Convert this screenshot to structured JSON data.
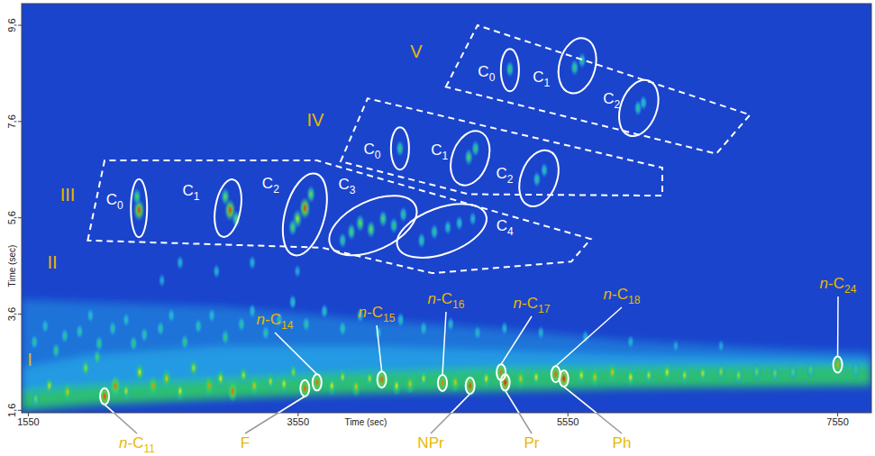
{
  "chart_data": {
    "type": "contour",
    "xlabel": "Time (sec)",
    "ylabel": "Time (sec)",
    "xlim": [
      1500,
      7800
    ],
    "ylim": [
      1.55,
      10.05
    ],
    "xticks": [
      1550,
      3550,
      5550,
      7550
    ],
    "yticks": [
      {
        "value": 1.6,
        "label": "1,6"
      },
      {
        "value": 3.6,
        "label": "3,6"
      },
      {
        "value": 5.6,
        "label": "5,6"
      },
      {
        "value": 7.6,
        "label": "7,6"
      },
      {
        "value": 9.6,
        "label": "9,6"
      }
    ],
    "zlim": [
      0,
      100
    ],
    "grid": false,
    "bands": [
      {
        "x": [
          1500,
          2000,
          3000,
          4000,
          5000,
          6000,
          7000,
          7800
        ],
        "y_low": [
          2.45,
          2.7,
          2.9,
          2.9,
          2.8,
          2.7,
          2.65,
          2.6
        ],
        "y_high": [
          3.9,
          3.85,
          3.75,
          3.5,
          3.3,
          3.05,
          2.9,
          2.8
        ],
        "intensity": 12
      },
      {
        "x": [
          1500,
          2000,
          3000,
          4000,
          5000,
          6000,
          7000,
          7800
        ],
        "y_low": [
          1.95,
          2.05,
          2.2,
          2.3,
          2.4,
          2.45,
          2.47,
          2.5
        ],
        "y_high": [
          2.48,
          2.75,
          2.93,
          2.93,
          2.84,
          2.75,
          2.7,
          2.66
        ],
        "intensity": 22
      },
      {
        "x": [
          1500,
          2000,
          3000,
          4000,
          5000,
          6000,
          7000,
          7800
        ],
        "y_low": [
          1.6,
          1.71,
          1.84,
          1.95,
          2.0,
          2.06,
          2.09,
          2.11
        ],
        "y_high": [
          2.02,
          2.11,
          2.26,
          2.39,
          2.48,
          2.51,
          2.53,
          2.55
        ],
        "intensity": 45
      }
    ],
    "peaks": {
      "x": [
        1605,
        1705,
        1840,
        1975,
        2060,
        2115,
        2195,
        2275,
        2375,
        2475,
        2575,
        2675,
        2775,
        2890,
        2975,
        3065,
        3145,
        3225,
        3345,
        3445,
        3515,
        3600,
        3690,
        3800,
        3880,
        3980,
        4080,
        4170,
        4280,
        4380,
        4480,
        4620,
        4715,
        4825,
        4945,
        5055,
        5085,
        5200,
        5315,
        5460,
        5520,
        5650,
        5750,
        5880,
        6015,
        6150,
        6285,
        6415,
        6550,
        6685,
        6815,
        6950,
        7085,
        7220,
        7350,
        7550,
        7685,
        1595,
        1675,
        1755,
        1820,
        1930,
        2010,
        2075,
        2175,
        2275,
        2330,
        2410,
        2530,
        2610,
        2710,
        2810,
        2910,
        3010,
        3130,
        3210,
        3310,
        3410,
        3510,
        3610,
        3745,
        3880,
        4010,
        4145,
        4310,
        4480,
        4680,
        4880,
        5080,
        5350,
        5680,
        6015,
        6350,
        6685,
        2675,
        2945,
        3210,
        3545,
        2540,
        2370,
        2355,
        3045,
        3010,
        3090,
        3600,
        3545,
        3645,
        3510,
        3945,
        4010,
        4090,
        4180,
        4260,
        4330,
        3880,
        4465,
        4560,
        4660,
        4745,
        4845,
        4305,
        4815,
        4865,
        5320,
        5375,
        5120,
        5600,
        5655,
        6070,
        6110
      ],
      "y": [
        1.84,
        2.11,
        1.98,
        2.48,
        2.7,
        1.89,
        2.11,
        2.0,
        2.39,
        2.11,
        2.26,
        2.0,
        2.48,
        2.11,
        2.26,
        2.0,
        2.33,
        2.11,
        2.2,
        2.15,
        2.39,
        2.06,
        2.18,
        2.11,
        2.29,
        2.09,
        2.26,
        2.24,
        2.11,
        2.15,
        2.26,
        2.17,
        2.18,
        2.11,
        2.26,
        2.39,
        2.18,
        2.26,
        2.29,
        2.35,
        2.26,
        2.33,
        2.29,
        2.39,
        2.29,
        2.33,
        2.39,
        2.33,
        2.37,
        2.4,
        2.33,
        2.4,
        2.37,
        2.4,
        2.44,
        2.55,
        2.44,
        3.02,
        3.35,
        2.84,
        3.15,
        3.24,
        3.57,
        2.99,
        3.3,
        3.48,
        2.99,
        3.17,
        3.3,
        3.57,
        3.02,
        3.35,
        3.57,
        3.12,
        3.39,
        3.66,
        3.21,
        3.48,
        3.85,
        3.39,
        3.66,
        3.3,
        3.57,
        3.21,
        3.48,
        3.3,
        3.39,
        3.21,
        3.3,
        3.21,
        3.12,
        3.02,
        2.93,
        2.93,
        4.67,
        4.49,
        4.67,
        4.49,
        4.3,
        5.76,
        6.04,
        5.76,
        6.04,
        5.58,
        5.8,
        5.58,
        6.09,
        5.4,
        5.31,
        5.49,
        5.36,
        5.58,
        5.44,
        5.67,
        5.13,
        5.13,
        5.31,
        5.4,
        5.49,
        5.58,
        7.04,
        6.86,
        7.04,
        6.4,
        6.59,
        8.69,
        8.72,
        8.87,
        7.88,
        7.99
      ],
      "intensity": [
        60,
        70,
        80,
        65,
        55,
        95,
        90,
        70,
        75,
        85,
        80,
        75,
        70,
        85,
        75,
        90,
        70,
        80,
        70,
        75,
        65,
        92,
        90,
        75,
        70,
        80,
        70,
        92,
        75,
        80,
        70,
        88,
        80,
        95,
        75,
        90,
        100,
        80,
        75,
        92,
        100,
        75,
        80,
        80,
        75,
        70,
        75,
        70,
        70,
        65,
        65,
        60,
        60,
        55,
        55,
        85,
        50,
        45,
        40,
        50,
        45,
        45,
        40,
        50,
        45,
        40,
        50,
        45,
        45,
        40,
        50,
        45,
        40,
        50,
        45,
        40,
        45,
        40,
        40,
        45,
        40,
        45,
        40,
        40,
        40,
        40,
        38,
        38,
        35,
        35,
        35,
        35,
        30,
        30,
        35,
        35,
        35,
        30,
        30,
        95,
        55,
        95,
        60,
        55,
        95,
        70,
        60,
        55,
        55,
        60,
        60,
        55,
        50,
        45,
        45,
        45,
        45,
        40,
        40,
        35,
        50,
        55,
        50,
        45,
        40,
        50,
        50,
        45,
        45,
        40
      ]
    },
    "compounds": [
      {
        "label": "n-C11",
        "x": 2115,
        "y": 1.89
      },
      {
        "label": "F",
        "x": 3600,
        "y": 2.06
      },
      {
        "label": "n-C14",
        "x": 3690,
        "y": 2.18
      },
      {
        "label": "n-C15",
        "x": 4170,
        "y": 2.24
      },
      {
        "label": "n-C16",
        "x": 4620,
        "y": 2.17
      },
      {
        "label": "NPr",
        "x": 4825,
        "y": 2.11
      },
      {
        "label": "n-C17",
        "x": 5055,
        "y": 2.39
      },
      {
        "label": "Pr",
        "x": 5085,
        "y": 2.18
      },
      {
        "label": "n-C18",
        "x": 5460,
        "y": 2.35
      },
      {
        "label": "Ph",
        "x": 5520,
        "y": 2.26
      },
      {
        "label": "n-C24",
        "x": 7550,
        "y": 2.55
      }
    ],
    "regions": [
      {
        "label": "I",
        "x": 1560,
        "y": 2.66
      },
      {
        "label": "II",
        "x": 1727,
        "y": 4.67
      },
      {
        "label": "III",
        "x": 1841,
        "y": 6.09,
        "polygon": [
          [
            1990,
            5.13
          ],
          [
            2115,
            6.79
          ],
          [
            3690,
            6.79
          ],
          [
            5720,
            5.16
          ],
          [
            5575,
            4.69
          ],
          [
            4545,
            4.45
          ],
          [
            3725,
            4.98
          ]
        ],
        "groups": [
          {
            "label": "C0",
            "x": 2370,
            "y": 5.8,
            "x_span": 120,
            "y_span": 1.21
          },
          {
            "label": "C1",
            "x": 3030,
            "y": 5.8,
            "x_span": 187,
            "y_span": 1.21
          },
          {
            "label": "C2",
            "x": 3600,
            "y": 5.67,
            "x_span": 294,
            "y_span": 1.75
          },
          {
            "label": "C3",
            "x": 4105,
            "y": 5.44,
            "x_span": 695,
            "y_span": 1.02
          },
          {
            "label": "C4",
            "x": 4615,
            "y": 5.33,
            "x_span": 695,
            "y_span": 0.95
          }
        ]
      },
      {
        "label": "IV",
        "x": 3678,
        "y": 7.63,
        "polygon": [
          [
            3865,
            6.77
          ],
          [
            4065,
            8.08
          ],
          [
            6250,
            6.64
          ],
          [
            6250,
            6.06
          ],
          [
            4815,
            6.09
          ]
        ],
        "groups": [
          {
            "label": "C0",
            "x": 4305,
            "y": 7.04,
            "x_span": 134,
            "y_span": 0.88
          },
          {
            "label": "C1",
            "x": 4825,
            "y": 6.84,
            "x_span": 267,
            "y_span": 1.17
          },
          {
            "label": "C2",
            "x": 5335,
            "y": 6.42,
            "x_span": 267,
            "y_span": 1.21
          }
        ]
      },
      {
        "label": "V",
        "x": 4426,
        "y": 9.05,
        "polygon": [
          [
            4645,
            8.32
          ],
          [
            4880,
            9.6
          ],
          [
            6900,
            7.74
          ],
          [
            6650,
            6.93
          ]
        ],
        "groups": [
          {
            "label": "C0",
            "x": 5120,
            "y": 8.67,
            "x_span": 134,
            "y_span": 0.88
          },
          {
            "label": "C1",
            "x": 5620,
            "y": 8.76,
            "x_span": 267,
            "y_span": 1.17
          },
          {
            "label": "C2",
            "x": 6075,
            "y": 7.88,
            "x_span": 267,
            "y_span": 1.21
          }
        ]
      }
    ]
  }
}
